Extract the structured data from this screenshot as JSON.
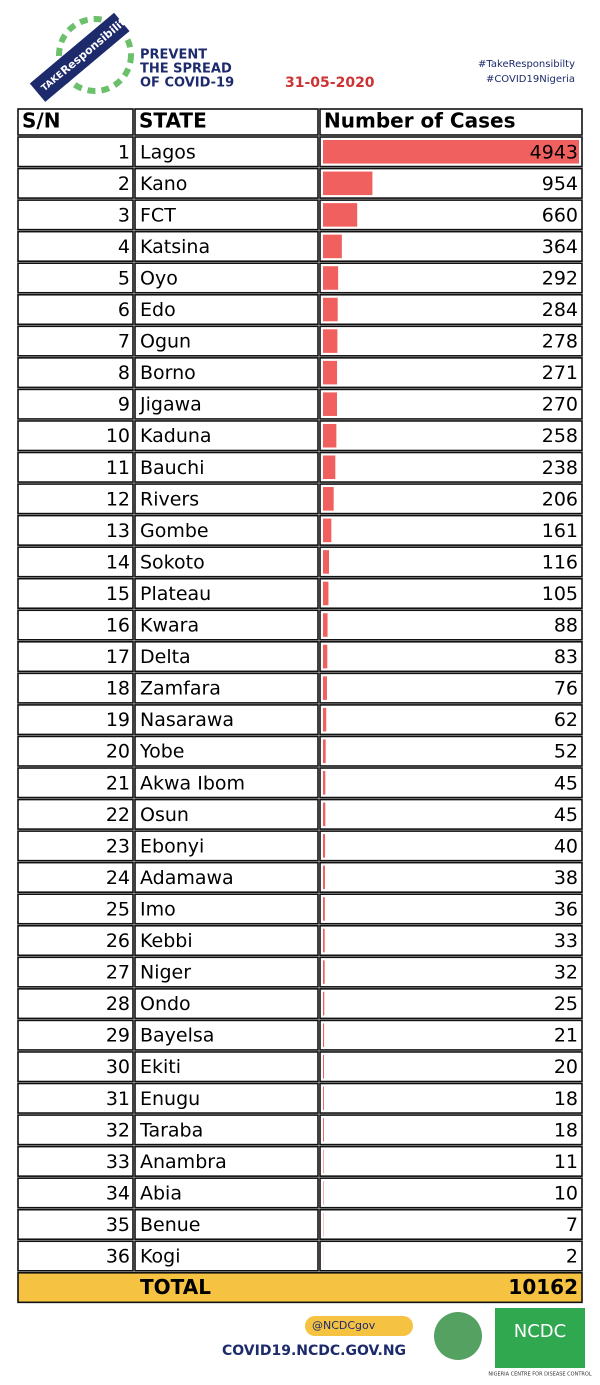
{
  "header": {
    "logo_text_1": "TAKE",
    "logo_text_2": "Responsibility",
    "title_lines": [
      "PREVENT",
      "THE SPREAD",
      "OF COVID-19"
    ],
    "date": "31-05-2020",
    "hashtags": [
      "#TakeResponsibilty",
      "#COVID19Nigeria"
    ]
  },
  "table": {
    "columns": [
      "S/N",
      "STATE",
      "Number of Cases"
    ],
    "rows": [
      [
        1,
        "Lagos",
        4943
      ],
      [
        2,
        "Kano",
        954
      ],
      [
        3,
        "FCT",
        660
      ],
      [
        4,
        "Katsina",
        364
      ],
      [
        5,
        "Oyo",
        292
      ],
      [
        6,
        "Edo",
        284
      ],
      [
        7,
        "Ogun",
        278
      ],
      [
        8,
        "Borno",
        271
      ],
      [
        9,
        "Jigawa",
        270
      ],
      [
        10,
        "Kaduna",
        258
      ],
      [
        11,
        "Bauchi",
        238
      ],
      [
        12,
        "Rivers",
        206
      ],
      [
        13,
        "Gombe",
        161
      ],
      [
        14,
        "Sokoto",
        116
      ],
      [
        15,
        "Plateau",
        105
      ],
      [
        16,
        "Kwara",
        88
      ],
      [
        17,
        "Delta",
        83
      ],
      [
        18,
        "Zamfara",
        76
      ],
      [
        19,
        "Nasarawa",
        62
      ],
      [
        20,
        "Yobe",
        52
      ],
      [
        21,
        "Akwa Ibom",
        45
      ],
      [
        22,
        "Osun",
        45
      ],
      [
        23,
        "Ebonyi",
        40
      ],
      [
        24,
        "Adamawa",
        38
      ],
      [
        25,
        "Imo",
        36
      ],
      [
        26,
        "Kebbi",
        33
      ],
      [
        27,
        "Niger",
        32
      ],
      [
        28,
        "Ondo",
        25
      ],
      [
        29,
        "Bayelsa",
        21
      ],
      [
        30,
        "Ekiti",
        20
      ],
      [
        31,
        "Enugu",
        18
      ],
      [
        32,
        "Taraba",
        18
      ],
      [
        33,
        "Anambra",
        11
      ],
      [
        34,
        "Abia",
        10
      ],
      [
        35,
        "Benue",
        7
      ],
      [
        36,
        "Kogi",
        2
      ]
    ],
    "total_label": "TOTAL",
    "total": 10162
  },
  "footer": {
    "social": "@NCDCgov",
    "website": "COVID19.NCDC.GOV.NG",
    "ncdc_logo": "NCDC",
    "ncdc_name": "NIGERIA CENTRE FOR DISEASE CONTROL"
  }
}
